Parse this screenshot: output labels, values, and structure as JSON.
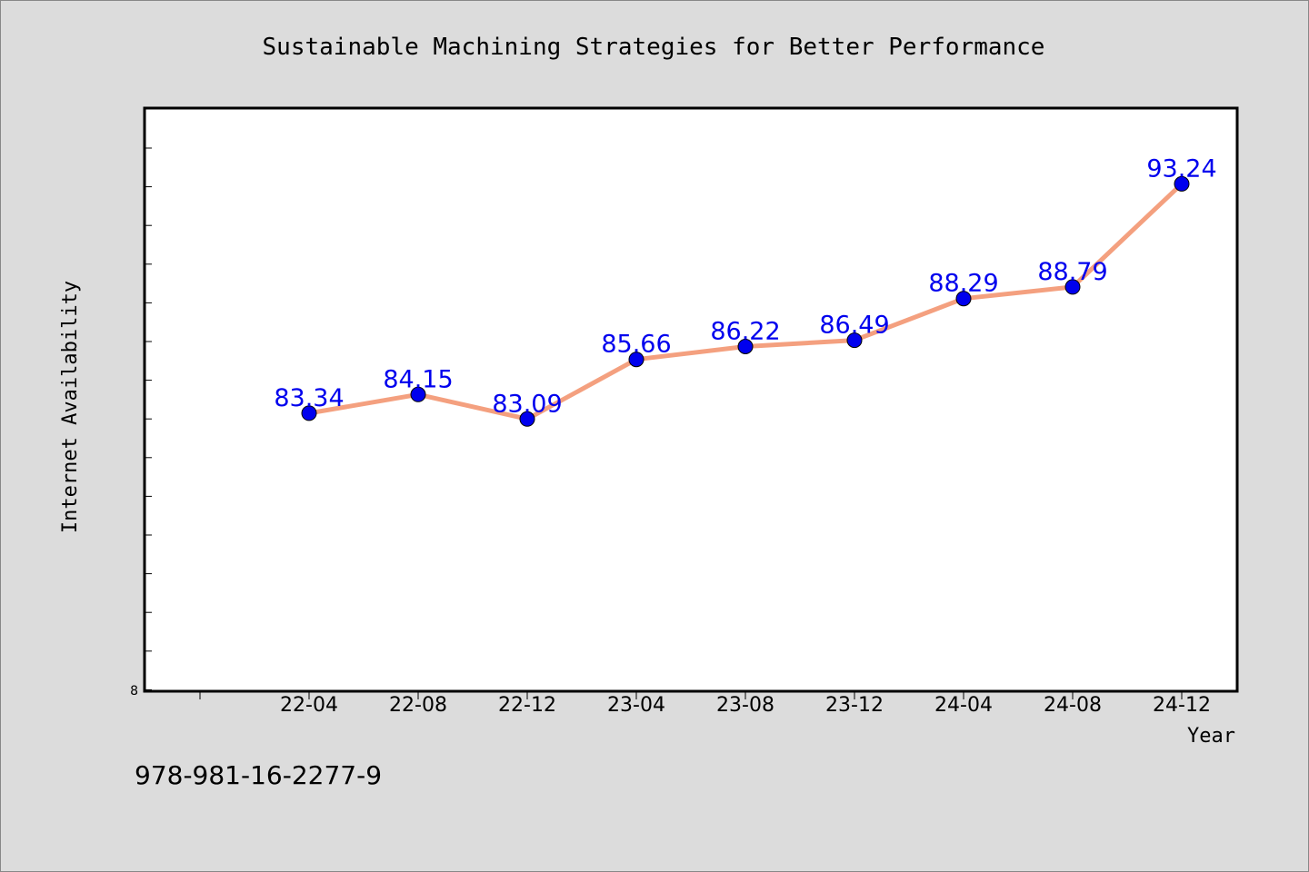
{
  "chart_data": {
    "type": "line",
    "title": "Sustainable Machining Strategies for Better Performance",
    "xlabel": "Year",
    "ylabel": "Internet Availability",
    "categories": [
      "22-04",
      "22-08",
      "22-12",
      "23-04",
      "23-08",
      "23-12",
      "24-04",
      "24-08",
      "24-12"
    ],
    "series": [
      {
        "values": [
          83.34,
          84.15,
          83.09,
          85.66,
          86.22,
          86.49,
          88.29,
          88.79,
          93.24
        ]
      }
    ],
    "y_tick_label": "8",
    "ylim": [
      71.38,
      96.47
    ],
    "grid": false,
    "colors": {
      "line": "#f4a07f",
      "marker": "#0000ee",
      "label": "#0000ee",
      "plot_bg": "#ffffff",
      "page_bg": "#dcdcdc"
    }
  },
  "footer": {
    "isbn": "978-981-16-2277-9"
  }
}
